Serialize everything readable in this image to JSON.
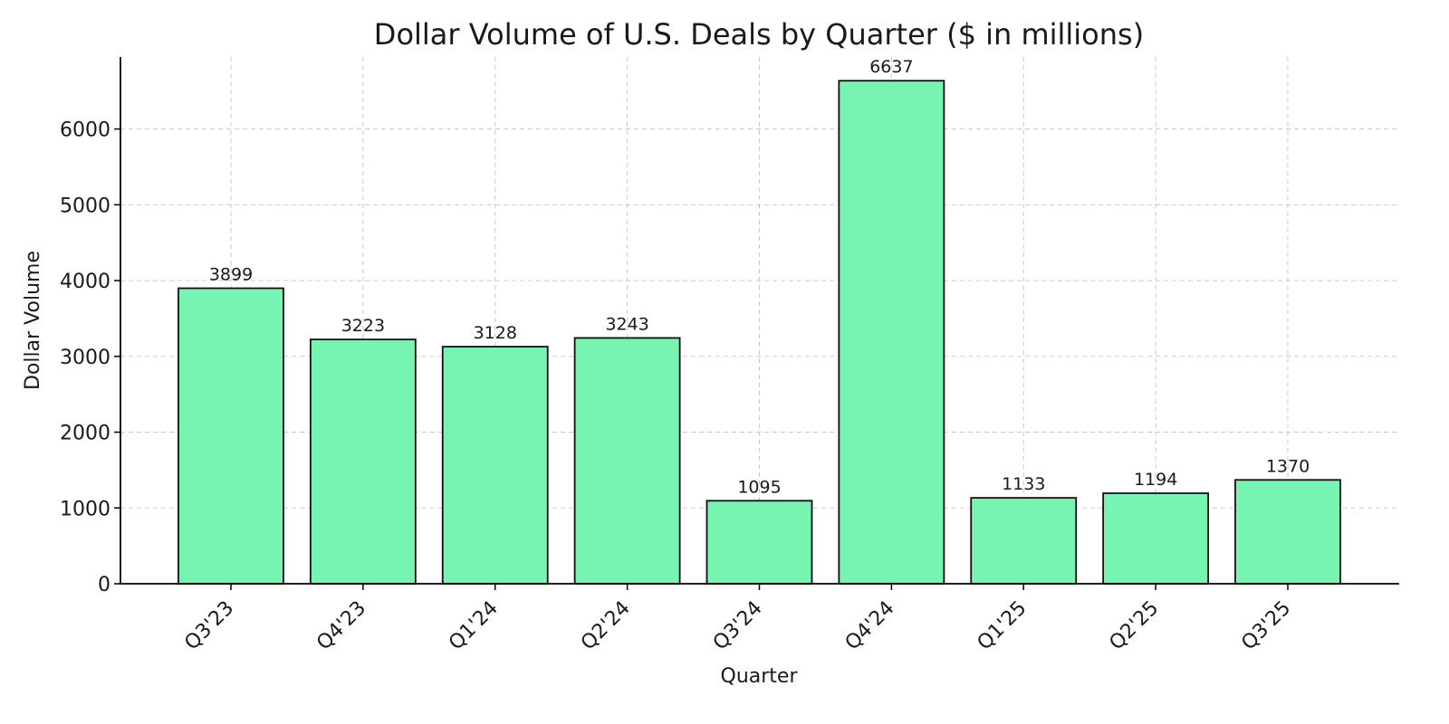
{
  "chart_data": {
    "type": "bar",
    "title": "Dollar Volume of U.S. Deals by Quarter ($ in millions)",
    "xlabel": "Quarter",
    "ylabel": "Dollar Volume",
    "categories": [
      "Q3'23",
      "Q4'23",
      "Q1'24",
      "Q2'24",
      "Q3'24",
      "Q4'24",
      "Q1'25",
      "Q2'25",
      "Q3'25"
    ],
    "values": [
      3899,
      3223,
      3128,
      3243,
      1095,
      6637,
      1133,
      1194,
      1370
    ],
    "ylim": [
      0,
      6950
    ],
    "yticks": [
      0,
      1000,
      2000,
      3000,
      4000,
      5000,
      6000
    ],
    "grid": true,
    "bar_color": "#77f4b1",
    "bar_edge_color": "#111111"
  }
}
